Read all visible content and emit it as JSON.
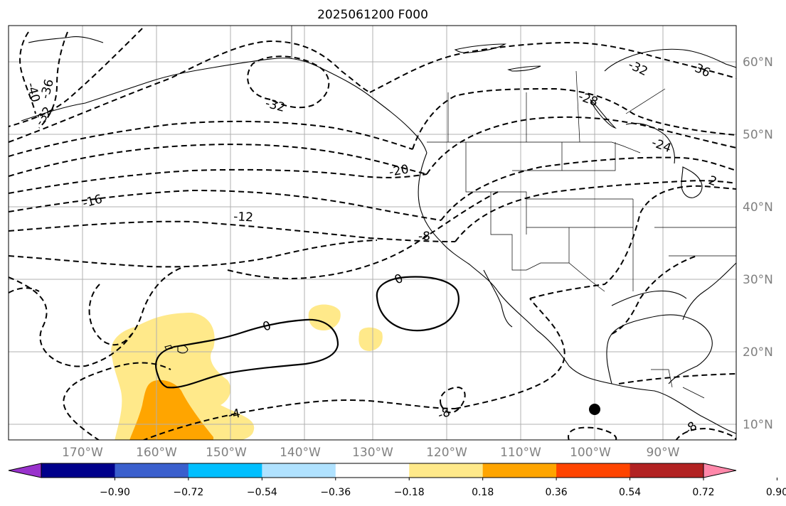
{
  "title": "2025061200 F000",
  "lon_labels": [
    "170°W",
    "160°W",
    "150°W",
    "140°W",
    "130°W",
    "120°W",
    "110°W",
    "100°W",
    "90°W"
  ],
  "lat_labels": [
    "60°N",
    "50°N",
    "40°N",
    "30°N",
    "20°N",
    "10°N"
  ],
  "colorbar": {
    "ticks": [
      "−0.90",
      "−0.72",
      "−0.54",
      "−0.36",
      "−0.18",
      "0.18",
      "0.36",
      "0.54",
      "0.72",
      "0.90"
    ],
    "colors": [
      "#9932cc",
      "#00008b",
      "#3a5fcd",
      "#00bfff",
      "#b0e2ff",
      "#ffffff",
      "#ffe98a",
      "#ffa500",
      "#ff4500",
      "#b22222",
      "#ff88aa"
    ]
  },
  "contour_labels": [
    "-40",
    "-36",
    "-32",
    "-32",
    "-28",
    "-32",
    "-36",
    "-24",
    "-20",
    "-16",
    "-12",
    "-8",
    "0",
    "0",
    "-4",
    "-8",
    "-8",
    "2"
  ],
  "fill_colors": {
    "light": "#ffe98a",
    "dark": "#ffa500"
  }
}
